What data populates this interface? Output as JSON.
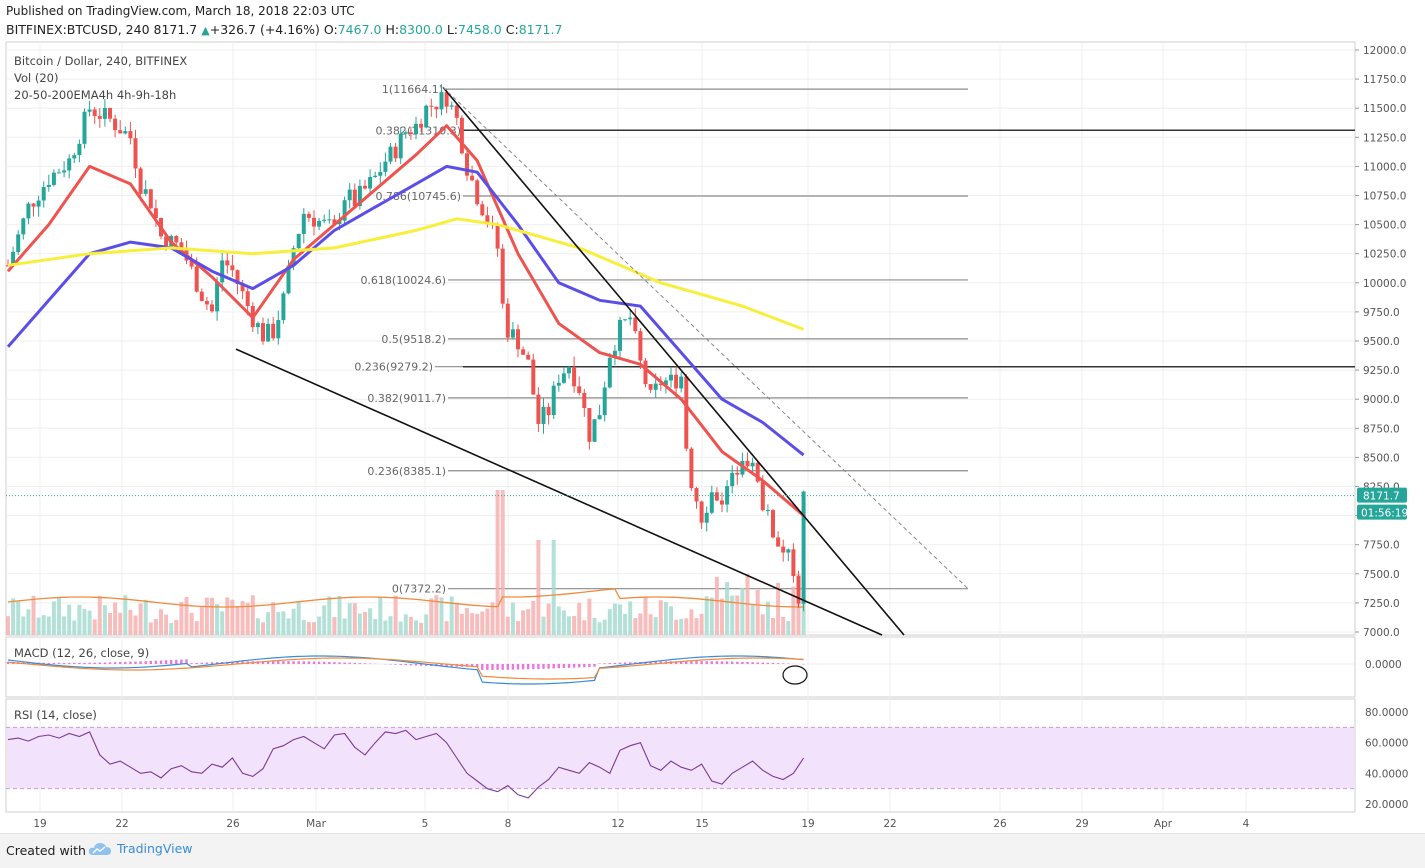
{
  "header": {
    "published": "Published on TradingView.com, March 18, 2018 22:03 UTC",
    "symbol": "BITFINEX:BTCUSD, 240",
    "last": "8171.7",
    "change": "+326.7 (+4.16%)",
    "open_label": "O:",
    "open": "7467.0",
    "high_label": "H:",
    "high": "8300.0",
    "low_label": "L:",
    "low": "7458.0",
    "close_label": "C:",
    "close": "8171.7"
  },
  "legend": {
    "title": "Bitcoin / Dollar, 240, BITFINEX",
    "vol": "Vol (20)",
    "ema": "20-50-200EMA4h 4h-9h-18h",
    "macd": "MACD (12, 26, close, 9)",
    "rsi": "RSI (14, close)"
  },
  "footer": {
    "created": "Created with",
    "brand": "TradingView",
    "brand_icon": "cloud-logo-icon"
  },
  "colors": {
    "up": "#26a69a",
    "down": "#ef5350",
    "ema20": "#ef5350",
    "ema50": "#5b4ee8",
    "ema200": "#f7ef3a",
    "volume_ma": "#f08a3c",
    "rsi": "#7b3a96",
    "rsi_band": "#f3e2fb",
    "macd": "#3a8cd6",
    "signal": "#f08a3c",
    "price_tag": "#26a69a"
  },
  "chart_data": [
    {
      "type": "candlestick",
      "title": "Bitcoin / Dollar, 240, BITFINEX",
      "ylim": [
        7000,
        12000
      ],
      "y_ticks": [
        "12000.0",
        "11750.0",
        "11500.0",
        "11250.0",
        "11000.0",
        "10750.0",
        "10500.0",
        "10250.0",
        "10000.0",
        "9750.0",
        "9500.0",
        "9250.0",
        "9000.0",
        "8750.0",
        "8500.0",
        "8250.0",
        "8000.0",
        "7750.0",
        "7500.0",
        "7250.0",
        "7000.0"
      ],
      "x_ticks": [
        "19",
        "22",
        "26",
        "Mar",
        "5",
        "8",
        "12",
        "15",
        "19",
        "22",
        "26",
        "29",
        "Apr",
        "4"
      ],
      "close_path": [
        [
          0,
          10150
        ],
        [
          2,
          10650
        ],
        [
          4,
          10900
        ],
        [
          6,
          11050
        ],
        [
          8,
          11500
        ],
        [
          10,
          11400
        ],
        [
          12,
          11250
        ],
        [
          13,
          10850
        ],
        [
          14,
          10700
        ],
        [
          15,
          10400
        ],
        [
          17,
          10300
        ],
        [
          18,
          10100
        ],
        [
          19,
          9900
        ],
        [
          20,
          9750
        ],
        [
          21,
          10200
        ],
        [
          22,
          10100
        ],
        [
          24,
          9700
        ],
        [
          25,
          9550
        ],
        [
          26,
          9580
        ],
        [
          27,
          9850
        ],
        [
          28,
          10300
        ],
        [
          29,
          10600
        ],
        [
          31,
          10500
        ],
        [
          32,
          10450
        ],
        [
          33,
          10750
        ],
        [
          34,
          10700
        ],
        [
          35,
          10800
        ],
        [
          36,
          10900
        ],
        [
          37,
          11050
        ],
        [
          38,
          11150
        ],
        [
          39,
          11300
        ],
        [
          40,
          11350
        ],
        [
          41,
          11500
        ],
        [
          42,
          11550
        ],
        [
          43,
          11600
        ],
        [
          44,
          11400
        ],
        [
          45,
          11000
        ],
        [
          46,
          10750
        ],
        [
          47,
          10550
        ],
        [
          48,
          10300
        ],
        [
          48.5,
          9800
        ],
        [
          49,
          9600
        ],
        [
          50,
          9500
        ],
        [
          51,
          9300
        ],
        [
          52,
          8800
        ],
        [
          53,
          8900
        ],
        [
          54,
          9200
        ],
        [
          55,
          9300
        ],
        [
          56,
          9100
        ],
        [
          57,
          8700
        ],
        [
          58,
          8900
        ],
        [
          59,
          9400
        ],
        [
          60,
          9600
        ],
        [
          61,
          9700
        ],
        [
          62,
          9300
        ],
        [
          63,
          9000
        ],
        [
          64,
          9150
        ],
        [
          65,
          9150
        ],
        [
          66,
          9200
        ],
        [
          66.5,
          8600
        ],
        [
          67,
          8300
        ],
        [
          68,
          8000
        ],
        [
          69,
          8200
        ],
        [
          70,
          8150
        ],
        [
          71,
          8300
        ],
        [
          72,
          8550
        ],
        [
          73,
          8400
        ],
        [
          74,
          8100
        ],
        [
          75,
          7850
        ],
        [
          76,
          7700
        ],
        [
          77,
          7550
        ],
        [
          77.5,
          7300
        ],
        [
          78,
          8171.7
        ]
      ],
      "ema": [
        {
          "name": "EMA 20",
          "points": [
            [
              0,
              10100
            ],
            [
              4,
              10500
            ],
            [
              8,
              11000
            ],
            [
              12,
              10850
            ],
            [
              16,
              10350
            ],
            [
              20,
              10050
            ],
            [
              24,
              9700
            ],
            [
              28,
              10200
            ],
            [
              32,
              10500
            ],
            [
              36,
              10800
            ],
            [
              40,
              11100
            ],
            [
              43,
              11350
            ],
            [
              46,
              11050
            ],
            [
              50,
              10250
            ],
            [
              54,
              9650
            ],
            [
              58,
              9400
            ],
            [
              62,
              9300
            ],
            [
              66,
              9000
            ],
            [
              70,
              8550
            ],
            [
              74,
              8300
            ],
            [
              78,
              8000
            ]
          ]
        },
        {
          "name": "EMA 50",
          "points": [
            [
              0,
              9450
            ],
            [
              4,
              9850
            ],
            [
              8,
              10250
            ],
            [
              12,
              10350
            ],
            [
              16,
              10300
            ],
            [
              20,
              10100
            ],
            [
              24,
              9950
            ],
            [
              28,
              10150
            ],
            [
              32,
              10450
            ],
            [
              36,
              10650
            ],
            [
              40,
              10850
            ],
            [
              43,
              11000
            ],
            [
              46,
              10950
            ],
            [
              50,
              10500
            ],
            [
              54,
              10000
            ],
            [
              58,
              9850
            ],
            [
              62,
              9800
            ],
            [
              66,
              9400
            ],
            [
              70,
              9000
            ],
            [
              74,
              8800
            ],
            [
              78,
              8520
            ]
          ]
        },
        {
          "name": "EMA 200",
          "points": [
            [
              0,
              10150
            ],
            [
              8,
              10250
            ],
            [
              16,
              10300
            ],
            [
              24,
              10250
            ],
            [
              32,
              10300
            ],
            [
              40,
              10450
            ],
            [
              44,
              10550
            ],
            [
              48,
              10500
            ],
            [
              52,
              10400
            ],
            [
              56,
              10300
            ],
            [
              60,
              10150
            ],
            [
              64,
              10000
            ],
            [
              68,
              9900
            ],
            [
              72,
              9800
            ],
            [
              78,
              9600
            ]
          ]
        }
      ],
      "fibonacci": [
        {
          "label": "1(11664.1)",
          "value": 11664.1
        },
        {
          "label": "0.382(11310.3)",
          "value": 11310.3
        },
        {
          "label": "0.786(10745.6)",
          "value": 10745.6
        },
        {
          "label": "0.618(10024.6)",
          "value": 10024.6
        },
        {
          "label": "0.5(9518.2)",
          "value": 9518.2
        },
        {
          "label": "0.236(9279.2)",
          "value": 9279.2
        },
        {
          "label": "0.382(9011.7)",
          "value": 9011.7
        },
        {
          "label": "0.236(8385.1)",
          "value": 8385.1
        },
        {
          "label": "0(7372.2)",
          "value": 7372.2
        }
      ],
      "price_tag": "8171.7",
      "countdown_tag": "01:56:19"
    },
    {
      "type": "line",
      "title": "MACD (12, 26, close, 9)",
      "y_ticks": [
        "0.0000"
      ]
    },
    {
      "type": "line",
      "title": "RSI (14, close)",
      "ylim": [
        20,
        80
      ],
      "y_ticks": [
        "80.0000",
        "60.0000",
        "40.0000",
        "20.0000"
      ],
      "values": [
        62,
        63,
        61,
        64,
        65,
        63,
        66,
        64,
        67,
        52,
        46,
        48,
        44,
        40,
        41,
        37,
        43,
        45,
        41,
        40,
        46,
        44,
        50,
        40,
        38,
        43,
        56,
        58,
        62,
        64,
        60,
        56,
        65,
        66,
        57,
        52,
        60,
        67,
        66,
        68,
        62,
        64,
        66,
        60,
        50,
        40,
        35,
        30,
        28,
        32,
        26,
        24,
        31,
        36,
        44,
        42,
        40,
        47,
        44,
        40,
        55,
        58,
        60,
        45,
        42,
        48,
        44,
        42,
        46,
        35,
        33,
        40,
        44,
        48,
        42,
        38,
        36,
        40,
        50
      ]
    }
  ]
}
